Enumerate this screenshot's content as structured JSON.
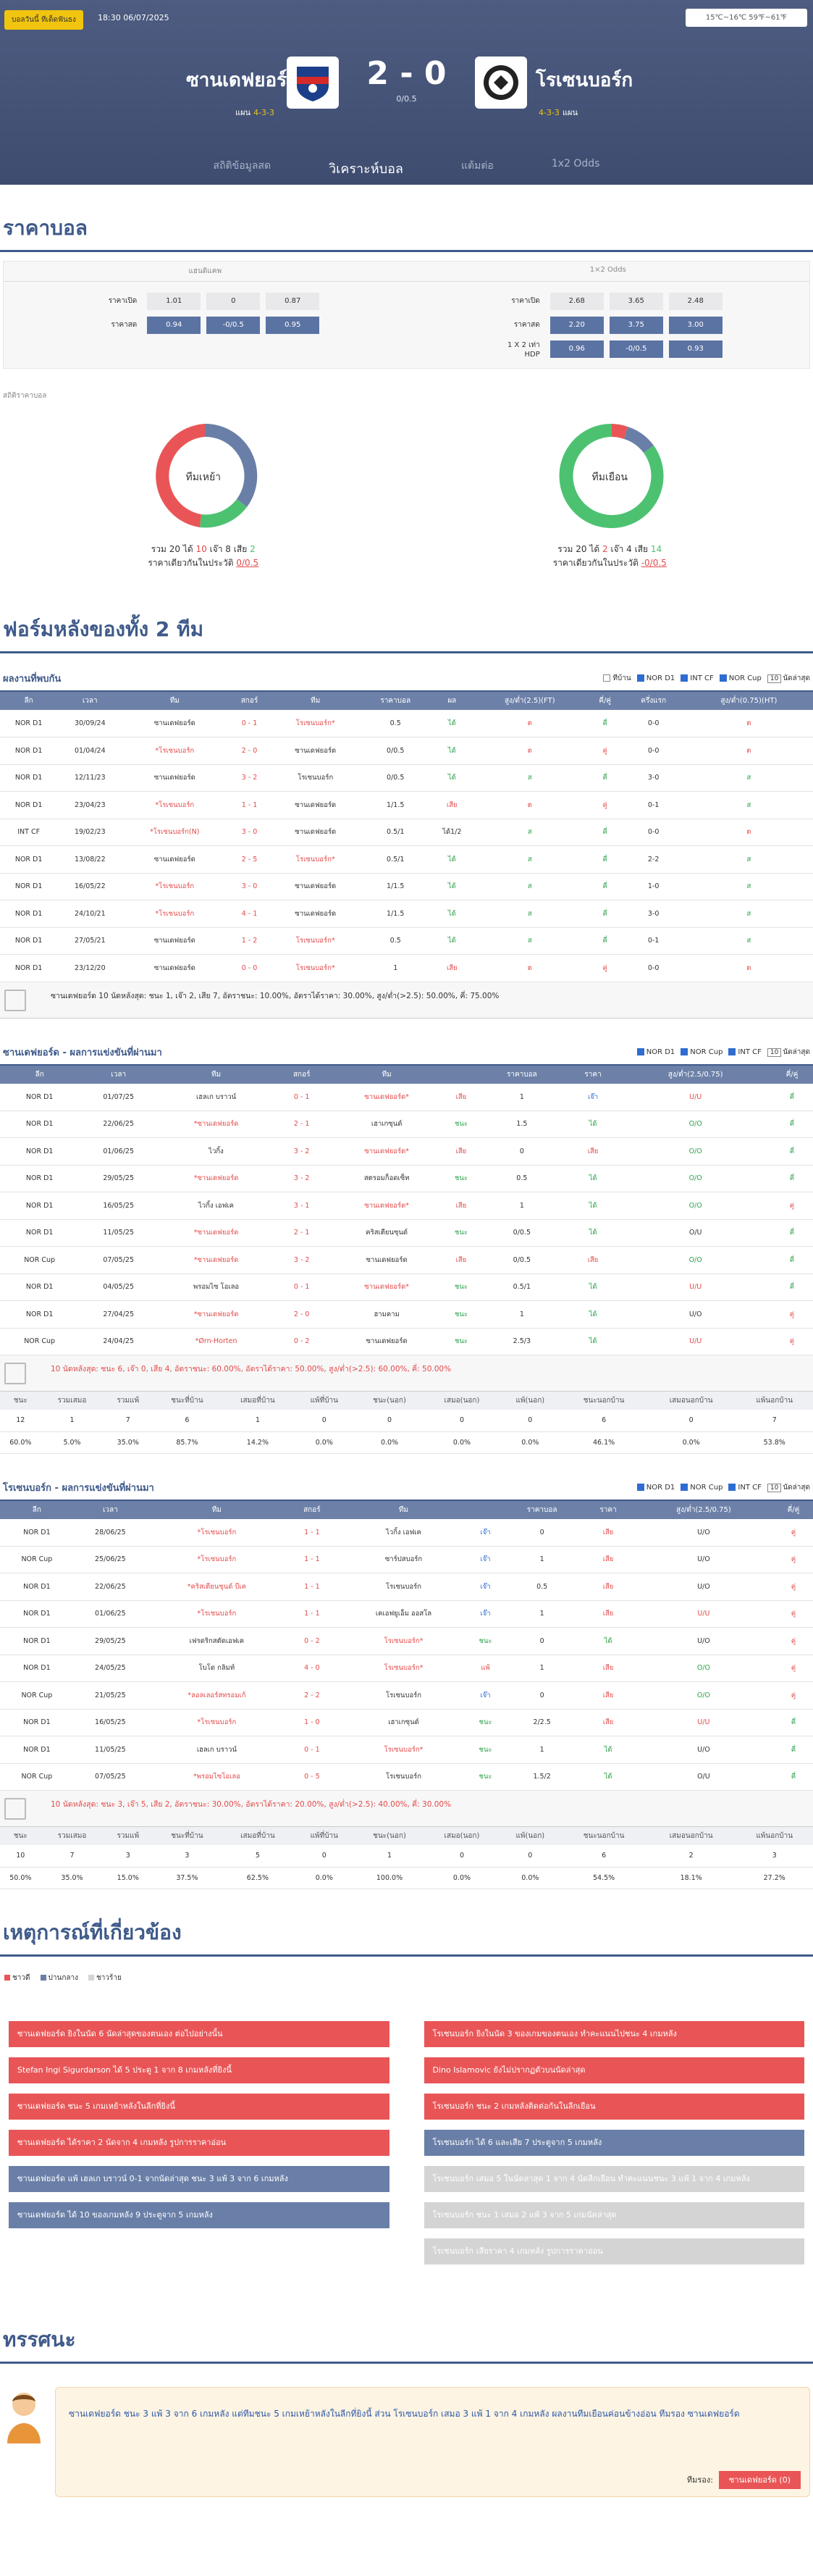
{
  "header": {
    "badge": "บอลวันนี้ ทีเด็ดฟันธง",
    "datetime": "18:30 06/07/2025",
    "weather": "15℃~16℃ 59℉~61℉",
    "home": "ซานเดฟยอร์ด",
    "away": "โรเซนบอร์ก",
    "score": "2 - 0",
    "handicap": "0/0.5",
    "home_form_label": "แผน",
    "home_form": "4-3-3",
    "away_form": "4-3-3",
    "away_form_label": "แผน",
    "tabs": [
      "สถิติข้อมูลสด",
      "วิเคราะห์บอล",
      "แต้มต่อ",
      "1x2 Odds"
    ]
  },
  "odds": {
    "title": "ราคาบอล",
    "left_head": "แฮนดิแคพ",
    "right_head": "1×2 Odds",
    "left": [
      {
        "label": "ราคาเปิด",
        "vals": [
          "1.01",
          "0",
          "0.87"
        ]
      },
      {
        "label": "ราคาสด",
        "vals": [
          "0.94",
          "-0/0.5",
          "0.95"
        ]
      }
    ],
    "right": [
      {
        "label": "ราคาเปิด",
        "vals": [
          "2.68",
          "3.65",
          "2.48"
        ]
      },
      {
        "label": "ราคาสด",
        "vals": [
          "2.20",
          "3.75",
          "3.00"
        ]
      },
      {
        "label": "1 X 2 เท่า HDP",
        "vals": [
          "0.96",
          "-0/0.5",
          "0.93"
        ]
      }
    ]
  },
  "stats": {
    "caption": "สถิติราคาบอล",
    "home": {
      "name": "ทีมเหย้า",
      "text": "รวม",
      "total": "20",
      "w_lbl": "ได้",
      "w": "10",
      "d_lbl": "เจ๊า",
      "d": "8",
      "l_lbl": "เสีย",
      "l": "2",
      "hl": "ราคาเดียวกันในประวัติ",
      "hv": "0/0.5"
    },
    "away": {
      "name": "ทีมเยือน",
      "text": "รวม",
      "total": "20",
      "w_lbl": "ได้",
      "w": "2",
      "d_lbl": "เจ๊า",
      "d": "4",
      "l_lbl": "เสีย",
      "l": "14",
      "hl": "ราคาเดียวกันในประวัติ",
      "hv": "-0/0.5"
    }
  },
  "form_title": "ฟอร์มหลังของทั้ง 2 ทีม",
  "h2h": {
    "title": "ผลงานที่พบกัน",
    "opts": [
      "ทีบ้าน",
      "NOR D1",
      "INT CF",
      "NOR Cup"
    ],
    "sel": "10",
    "sel_lbl": "นัดล่าสุด",
    "cols": [
      "ลีก",
      "เวลา",
      "ทีม",
      "สกอร์",
      "ทีม",
      "ราคาบอล",
      "ผล",
      "สูง/ต่ำ(2.5)(FT)",
      "คี่/คู่",
      "ครึ่งแรก",
      "สูง/ต่ำ(0.75)(HT)"
    ],
    "rows": [
      [
        "NOR D1",
        "30/09/24",
        "ซานเดฟยอร์ด",
        "0 - 1",
        "โรเซนบอร์ก*",
        "0.5",
        "ได้",
        "ต",
        "คี่",
        "0-0",
        "ต"
      ],
      [
        "NOR D1",
        "01/04/24",
        "*โรเซนบอร์ก",
        "2 - 0",
        "ซานเดฟยอร์ด",
        "0/0.5",
        "ได้",
        "ต",
        "คู่",
        "0-0",
        "ต"
      ],
      [
        "NOR D1",
        "12/11/23",
        "ซานเดฟยอร์ด",
        "3 - 2",
        "โรเซนบอร์ก",
        "0/0.5",
        "ได้",
        "ส",
        "คี่",
        "3-0",
        "ส"
      ],
      [
        "NOR D1",
        "23/04/23",
        "*โรเซนบอร์ก",
        "1 - 1",
        "ซานเดฟยอร์ด",
        "1/1.5",
        "เสีย",
        "ต",
        "คู่",
        "0-1",
        "ส"
      ],
      [
        "INT CF",
        "19/02/23",
        "*โรเซนบอร์ก(N)",
        "3 - 0",
        "ซานเดฟยอร์ด",
        "0.5/1",
        "ได้1/2",
        "ส",
        "คี่",
        "0-0",
        "ต"
      ],
      [
        "NOR D1",
        "13/08/22",
        "ซานเดฟยอร์ด",
        "2 - 5",
        "โรเซนบอร์ก*",
        "0.5/1",
        "ได้",
        "ส",
        "คี่",
        "2-2",
        "ส"
      ],
      [
        "NOR D1",
        "16/05/22",
        "*โรเซนบอร์ก",
        "3 - 0",
        "ซานเดฟยอร์ด",
        "1/1.5",
        "ได้",
        "ส",
        "คี่",
        "1-0",
        "ส"
      ],
      [
        "NOR D1",
        "24/10/21",
        "*โรเซนบอร์ก",
        "4 - 1",
        "ซานเดฟยอร์ด",
        "1/1.5",
        "ได้",
        "ส",
        "คี่",
        "3-0",
        "ส"
      ],
      [
        "NOR D1",
        "27/05/21",
        "ซานเดฟยอร์ด",
        "1 - 2",
        "โรเซนบอร์ก*",
        "0.5",
        "ได้",
        "ส",
        "คี่",
        "0-1",
        "ส"
      ],
      [
        "NOR D1",
        "23/12/20",
        "ซานเดฟยอร์ด",
        "0 - 0",
        "โรเซนบอร์ก*",
        "1",
        "เสีย",
        "ต",
        "คู่",
        "0-0",
        "ต"
      ]
    ],
    "note": "ซานเดฟยอร์ด 10 นัดหลังสุด: ชนะ 1, เจ๊า 2, เสีย 7, อัตราชนะ: 10.00%, อัตราได้ราคา: 30.00%, สูง/ต่ำ(>2.5): 50.00%, คี่: 75.00%"
  },
  "home_recent": {
    "title": "ซานเดฟยอร์ด - ผลการแข่งขันที่ผ่านมา",
    "opts": [
      "NOR D1",
      "NOR Cup",
      "INT CF"
    ],
    "sel": "10",
    "sel_lbl": "นัดล่าสุด",
    "cols": [
      "ลีก",
      "เวลา",
      "ทีม",
      "สกอร์",
      "ทีม",
      "",
      "ราคาบอล",
      "ราคา",
      "สูง/ต่ำ(2.5/0.75)",
      "คี่/คู่"
    ],
    "rows": [
      [
        "NOR D1",
        "01/07/25",
        "เฮลเก บราวน์",
        "0 - 1",
        "ซานเดฟยอร์ด*",
        "เสีย",
        "1",
        "เจ๊า",
        "U/U",
        "คี่"
      ],
      [
        "NOR D1",
        "22/06/25",
        "*ซานเดฟยอร์ด",
        "2 - 1",
        "เฮาเกซุนด์",
        "ชนะ",
        "1.5",
        "ได้",
        "O/O",
        "คี่"
      ],
      [
        "NOR D1",
        "01/06/25",
        "ไวกิ้ง",
        "3 - 2",
        "ซานเดฟยอร์ด*",
        "เสีย",
        "0",
        "เสีย",
        "O/O",
        "คี่"
      ],
      [
        "NOR D1",
        "29/05/25",
        "*ซานเดฟยอร์ด",
        "3 - 2",
        "สตรอมก็อดเซ็ท",
        "ชนะ",
        "0.5",
        "ได้",
        "O/O",
        "คี่"
      ],
      [
        "NOR D1",
        "16/05/25",
        "ไวกิ้ง เอฟเค",
        "3 - 1",
        "ซานเดฟยอร์ด*",
        "เสีย",
        "1",
        "ได้",
        "O/O",
        "คู่"
      ],
      [
        "NOR D1",
        "11/05/25",
        "*ซานเดฟยอร์ด",
        "2 - 1",
        "คริสเตียนซุนด์",
        "ชนะ",
        "0/0.5",
        "ได้",
        "O/U",
        "คี่"
      ],
      [
        "NOR Cup",
        "07/05/25",
        "*ซานเดฟยอร์ด",
        "3 - 2",
        "ซานเดฟยอร์ด",
        "เสีย",
        "0/0.5",
        "เสีย",
        "O/O",
        "คี่"
      ],
      [
        "NOR D1",
        "04/05/25",
        "พรอมไซ โอเลอ",
        "0 - 1",
        "ซานเดฟยอร์ด*",
        "ชนะ",
        "0.5/1",
        "ได้",
        "U/U",
        "คี่"
      ],
      [
        "NOR D1",
        "27/04/25",
        "*ซานเดฟยอร์ด",
        "2 - 0",
        "ฮามคาม",
        "ชนะ",
        "1",
        "ได้",
        "U/O",
        "คู่"
      ],
      [
        "NOR Cup",
        "24/04/25",
        "*Ørn-Horten",
        "0 - 2",
        "ซานเดฟยอร์ด",
        "ชนะ",
        "2.5/3",
        "ได้",
        "U/U",
        "คู่"
      ]
    ],
    "note": "10 นัดหลังสุด: ชนะ 6, เจ๊า 0, เสีย 4, อัตราชนะ: 60.00%, อัตราได้ราคา: 50.00%, สูง/ต่ำ(>2.5): 60.00%, คี่: 50.00%",
    "stat_cols": [
      "ชนะ",
      "รวมเสมอ",
      "รวมแพ้",
      "ชนะที่บ้าน",
      "เสมอที่บ้าน",
      "แพ้ที่บ้าน",
      "ชนะ(นอก)",
      "เสมอ(นอก)",
      "แพ้(นอก)",
      "ชนะนอกบ้าน",
      "เสมอนอกบ้าน",
      "แพ้นอกบ้าน"
    ],
    "stat_r1": [
      "12",
      "1",
      "7",
      "6",
      "1",
      "0",
      "0",
      "0",
      "0",
      "6",
      "0",
      "7"
    ],
    "stat_r2": [
      "60.0%",
      "5.0%",
      "35.0%",
      "85.7%",
      "14.2%",
      "0.0%",
      "0.0%",
      "0.0%",
      "0.0%",
      "46.1%",
      "0.0%",
      "53.8%"
    ]
  },
  "away_recent": {
    "title": "โรเซนบอร์ก - ผลการแข่งขันที่ผ่านมา",
    "opts": [
      "NOR D1",
      "NOR Cup",
      "INT CF"
    ],
    "sel": "10",
    "sel_lbl": "นัดล่าสุด",
    "cols": [
      "ลีก",
      "เวลา",
      "ทีม",
      "สกอร์",
      "ทีม",
      "",
      "ราคาบอล",
      "ราคา",
      "สูง/ต่ำ(2.5/0.75)",
      "คี่/คู่"
    ],
    "rows": [
      [
        "NOR D1",
        "28/06/25",
        "*โรเซนบอร์ก",
        "1 - 1",
        "ไวกิ้ง เอฟเค",
        "เจ๊า",
        "0",
        "เสีย",
        "U/O",
        "คู่"
      ],
      [
        "NOR Cup",
        "25/06/25",
        "*โรเซนบอร์ก",
        "1 - 1",
        "ซาร์ปสบอร์ก",
        "เจ๊า",
        "1",
        "เสีย",
        "U/O",
        "คู่"
      ],
      [
        "NOR D1",
        "22/06/25",
        "*คริสเตียนซุนด์ บีเค",
        "1 - 1",
        "โรเซนบอร์ก",
        "เจ๊า",
        "0.5",
        "เสีย",
        "U/O",
        "คู่"
      ],
      [
        "NOR D1",
        "01/06/25",
        "*โรเซนบอร์ก",
        "1 - 1",
        "เคเอฟยูเอ็ม ออสโล",
        "เจ๊า",
        "1",
        "เสีย",
        "U/U",
        "คู่"
      ],
      [
        "NOR D1",
        "29/05/25",
        "เฟรดริกสตัดเอฟเค",
        "0 - 2",
        "โรเซนบอร์ก*",
        "ชนะ",
        "0",
        "ได้",
        "U/O",
        "คู่"
      ],
      [
        "NOR D1",
        "24/05/25",
        "โบโด กลิมท์",
        "4 - 0",
        "โรเซนบอร์ก*",
        "แพ้",
        "1",
        "เสีย",
        "O/O",
        "คู่"
      ],
      [
        "NOR Cup",
        "21/05/25",
        "*ลอลเลอร์สทรอมเก้",
        "2 - 2",
        "โรเซนบอร์ก",
        "เจ๊า",
        "0",
        "เสีย",
        "O/O",
        "คู่"
      ],
      [
        "NOR D1",
        "16/05/25",
        "*โรเซนบอร์ก",
        "1 - 0",
        "เฮาเกซุนด์",
        "ชนะ",
        "2/2.5",
        "เสีย",
        "U/U",
        "คี่"
      ],
      [
        "NOR D1",
        "11/05/25",
        "เฮลเก บราวน์",
        "0 - 1",
        "โรเซนบอร์ก*",
        "ชนะ",
        "1",
        "ได้",
        "U/O",
        "คี่"
      ],
      [
        "NOR Cup",
        "07/05/25",
        "*พรอมไซโอเลอ",
        "0 - 5",
        "โรเซนบอร์ก",
        "ชนะ",
        "1.5/2",
        "ได้",
        "O/U",
        "คี่"
      ]
    ],
    "note": "10 นัดหลังสุด: ชนะ 3, เจ๊า 5, เสีย 2, อัตราชนะ: 30.00%, อัตราได้ราคา: 20.00%, สูง/ต่ำ(>2.5): 40.00%, คี่: 30.00%",
    "stat_cols": [
      "ชนะ",
      "รวมเสมอ",
      "รวมแพ้",
      "ชนะที่บ้าน",
      "เสมอที่บ้าน",
      "แพ้ที่บ้าน",
      "ชนะ(นอก)",
      "เสมอ(นอก)",
      "แพ้(นอก)",
      "ชนะนอกบ้าน",
      "เสมอนอกบ้าน",
      "แพ้นอกบ้าน"
    ],
    "stat_r1": [
      "10",
      "7",
      "3",
      "3",
      "5",
      "0",
      "1",
      "0",
      "0",
      "6",
      "2",
      "3"
    ],
    "stat_r2": [
      "50.0%",
      "35.0%",
      "15.0%",
      "37.5%",
      "62.5%",
      "0.0%",
      "100.0%",
      "0.0%",
      "0.0%",
      "54.5%",
      "18.1%",
      "27.2%"
    ]
  },
  "events": {
    "title": "เหตุการณ์ที่เกี่ยวข้อง",
    "legend": [
      "ชาวดี",
      "ปานกลาง",
      "ชาวร้าย"
    ],
    "left": [
      {
        "t": "ซานเดฟยอร์ด ยิงในนัด 6 นัดล่าสุดของตนเอง ต่อไปอย่างนั้น",
        "c": "r"
      },
      {
        "t": "Stefan Ingi Sigurdarson ได้ 5 ประตู 1 จาก 8 เกมหลังที่ยิงนี้",
        "c": "r"
      },
      {
        "t": "ซานเดฟยอร์ด ชนะ 5 เกมเหย้าหลังในลีกที่ยิงนี้",
        "c": "r"
      },
      {
        "t": "ซานเดฟยอร์ด ได้ราคา 2 นัดจาก 4 เกมหลัง รูปการราคาอ่อน",
        "c": "r"
      },
      {
        "t": "ซานเดฟยอร์ด แพ้ เฮลเก บราวน์ 0-1 จากนัดล่าสุด ชนะ 3 แพ้ 3 จาก 6 เกมหลัง",
        "c": "b"
      },
      {
        "t": "ซานเดฟยอร์ด ได้ 10 ของเกมหลัง 9 ประตูจาก 5 เกมหลัง",
        "c": "b"
      }
    ],
    "right": [
      {
        "t": "โรเซนบอร์ก ยิงในนัด 3 ของเกมของตนเอง ทำคะแนนไปชนะ 4 เกมหลัง",
        "c": "r"
      },
      {
        "t": "Dino Islamovic ยังไม่ปรากฏตัวบนนัดล่าสุด",
        "c": "r"
      },
      {
        "t": "โรเซนบอร์ก ชนะ 2 เกมหลังติดต่อกันในลีกเยือน",
        "c": "r"
      },
      {
        "t": "โรเซนบอร์ก ได้ 6 และเสีย 7 ประตูจาก 5 เกมหลัง",
        "c": "b"
      },
      {
        "t": "โรเซนบอร์ก เสมอ 5 ในนัดล่าสุด 1 จาก 4 นัดลีกเยือน ทำคะแนนชนะ 3 แพ้ 1 จาก 4 เกมหลัง",
        "c": "g"
      },
      {
        "t": "โรเซนบอร์ก ชนะ 1 เสมอ 2 แพ้ 3 จาก 5 เกมนัดล่าสุด",
        "c": "g"
      },
      {
        "t": "โรเซนบอร์ก เสียราคา 4 เกมหลัง รูปการราคาอ่อน",
        "c": "g"
      }
    ]
  },
  "opinion": {
    "title": "ทรรศนะ",
    "text": "ซานเดฟยอร์ด ชนะ 3 แพ้ 3 จาก 6 เกมหลัง แต่ทีมชนะ 5 เกมเหย้าหลังในลีกที่ยิงนี้ ส่วน โรเซนบอร์ก เสมอ 3 แพ้ 1 จาก 4 เกมหลัง ผลงานทีมเยือนค่อนข้างอ่อน ทีมรอง ซานเดฟยอร์ด",
    "pick_lbl": "ทีมรอง:",
    "pick": "ซานเดฟยอร์ด (0)"
  },
  "colors": {
    "header": "#4d5c80",
    "accent": "#3f5a8a",
    "win": "#4cc271",
    "lose": "#e34a4a",
    "mid": "#6a7fa7"
  }
}
